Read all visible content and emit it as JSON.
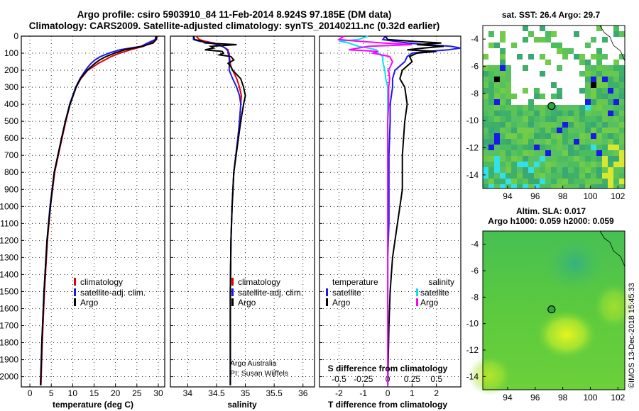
{
  "header": {
    "line1": "Argo profile: csiro 5903910_84 11-Feb-2014 8.924S 97.185E (DM data)",
    "line2": "Climatology: CARS2009. Satellite-adjusted climatology: synTS_20140211.nc (0.32d earlier)"
  },
  "colors": {
    "climatology": "#e00000",
    "satellite": "#1a1ae6",
    "argo": "#000000",
    "salinity_sat": "#00e5ee",
    "salinity_argo": "#ff00ff"
  },
  "depth_axis": {
    "ticks": [
      "0",
      "100",
      "200",
      "300",
      "400",
      "500",
      "600",
      "700",
      "800",
      "900",
      "1000",
      "1100",
      "1200",
      "1300",
      "1400",
      "1500",
      "1600",
      "1700",
      "1800",
      "1900",
      "2000"
    ],
    "range": [
      0,
      2060
    ]
  },
  "chart_data": [
    {
      "type": "line",
      "name": "temperature",
      "xlabel": "temperature (deg C)",
      "xticks": [
        "0",
        "5",
        "10",
        "15",
        "20",
        "25",
        "30"
      ],
      "xlim": [
        -2,
        31.5
      ],
      "legend": [
        "climatology",
        "satellite-adj. clim.",
        "Argo"
      ],
      "depth": [
        0,
        20,
        40,
        60,
        80,
        100,
        120,
        140,
        160,
        180,
        200,
        250,
        300,
        400,
        500,
        600,
        800,
        1000,
        1200,
        1500,
        1800,
        2050
      ],
      "series": [
        {
          "name": "climatology",
          "color": "#e00000",
          "values": [
            29.7,
            29.6,
            28.2,
            26.5,
            23.5,
            21.0,
            19.0,
            17.5,
            16.0,
            14.8,
            13.5,
            11.9,
            10.8,
            9.4,
            8.4,
            7.5,
            5.8,
            4.8,
            4.1,
            3.4,
            2.9,
            2.6
          ]
        },
        {
          "name": "satellite-adj. clim.",
          "color": "#1a1ae6",
          "values": [
            29.4,
            29.3,
            27.5,
            26.0,
            21.0,
            18.5,
            16.5,
            15.2,
            14.3,
            13.6,
            13.0,
            11.7,
            10.7,
            9.3,
            8.3,
            7.4,
            5.7,
            4.7,
            4.0,
            3.3,
            2.8,
            2.5
          ]
        },
        {
          "name": "Argo",
          "color": "#000000",
          "values": [
            29.6,
            29.5,
            28.8,
            26.2,
            22.2,
            19.8,
            17.8,
            16.3,
            15.2,
            14.3,
            13.4,
            11.8,
            10.8,
            9.4,
            8.3,
            7.4,
            5.7,
            4.8,
            4.0,
            3.3,
            2.8,
            2.5
          ]
        }
      ]
    },
    {
      "type": "line",
      "name": "salinity",
      "xlabel": "salinity",
      "xticks": [
        "34",
        "34.5",
        "35",
        "35.5",
        "36"
      ],
      "xlim": [
        33.7,
        36.2
      ],
      "legend": [
        "climatology",
        "satellite-adj. clim.",
        "Argo"
      ],
      "credit1": "Argo Australia",
      "credit2": "PI: Susan Wijffels",
      "depth": [
        0,
        20,
        30,
        40,
        50,
        60,
        70,
        80,
        90,
        100,
        110,
        120,
        140,
        160,
        180,
        200,
        250,
        300,
        350,
        400,
        500,
        600,
        800,
        1000,
        1200,
        1500,
        1800,
        2050
      ],
      "series": [
        {
          "name": "climatology",
          "color": "#e00000",
          "values": [
            34.15,
            34.2,
            34.3,
            34.45,
            34.55,
            34.6,
            34.65,
            34.7,
            34.7,
            34.72,
            34.72,
            34.72,
            34.73,
            34.74,
            34.75,
            34.78,
            34.85,
            34.9,
            34.93,
            34.92,
            34.9,
            34.87,
            34.8,
            34.77,
            34.75,
            34.74,
            34.74,
            34.74
          ]
        },
        {
          "name": "satellite-adj. clim.",
          "color": "#1a1ae6",
          "values": [
            34.1,
            34.1,
            34.2,
            34.4,
            34.5,
            34.6,
            34.65,
            34.68,
            34.7,
            34.7,
            34.71,
            34.72,
            34.72,
            34.73,
            34.72,
            34.72,
            34.78,
            34.85,
            34.9,
            34.92,
            34.9,
            34.87,
            34.8,
            34.77,
            34.75,
            34.74,
            34.74,
            34.74
          ]
        },
        {
          "name": "Argo",
          "color": "#000000",
          "values": [
            34.1,
            34.12,
            34.25,
            34.3,
            34.85,
            34.4,
            34.45,
            34.3,
            34.6,
            34.62,
            34.55,
            34.75,
            34.8,
            34.7,
            34.75,
            34.78,
            34.92,
            34.97,
            35.0,
            34.97,
            34.92,
            34.88,
            34.8,
            34.77,
            34.75,
            34.74,
            34.74,
            34.74
          ]
        }
      ]
    },
    {
      "type": "line",
      "name": "differences",
      "xlabel": "T difference from climatology",
      "xticks": [
        "-2",
        "-1",
        "0",
        "1",
        "2"
      ],
      "xlim": [
        -2.8,
        3.0
      ],
      "top_label": "S difference from climatology",
      "top_ticks": [
        "-0.5",
        "-0.25",
        "0",
        "0.25",
        "0.5"
      ],
      "legend_left_title": "temperature",
      "legend_left": [
        "satellite",
        "Argo"
      ],
      "legend_right_title": "salinity",
      "legend_right": [
        "satellite",
        "Argo"
      ],
      "depth": [
        0,
        20,
        30,
        40,
        50,
        60,
        70,
        80,
        90,
        100,
        120,
        150,
        200,
        250,
        300,
        400,
        500,
        700,
        900,
        1100,
        1300,
        1500,
        1700,
        2050
      ],
      "series": [
        {
          "name": "T satellite",
          "color": "#1a1ae6",
          "values": [
            -0.1,
            -0.2,
            0.3,
            0.8,
            1.6,
            2.6,
            3.0,
            2.5,
            1.6,
            1.0,
            0.8,
            0.7,
            0.3,
            0.2,
            0.2,
            0.1,
            0.1,
            0.05,
            0.05,
            0.05,
            0.0,
            0.0,
            0.0,
            0.0
          ]
        },
        {
          "name": "T Argo",
          "color": "#000000",
          "values": [
            -0.1,
            0.0,
            1.0,
            2.2,
            1.2,
            2.3,
            1.5,
            0.8,
            2.0,
            1.2,
            0.9,
            1.0,
            0.6,
            0.5,
            0.7,
            0.8,
            0.7,
            0.6,
            0.6,
            0.4,
            0.2,
            0.1,
            0.05,
            0.0
          ]
        },
        {
          "name": "S satellite",
          "color": "#00e5ee",
          "values": [
            -0.2,
            -0.3,
            -0.5,
            -0.4,
            -0.35,
            -0.3,
            -0.2,
            -0.12,
            -0.1,
            -0.1,
            -0.05,
            -0.05,
            -0.03,
            -0.02,
            0.0,
            0.0,
            0.0,
            0.0,
            0.0,
            0.0,
            0.0,
            0.0,
            0.0,
            0.0
          ]
        },
        {
          "name": "S Argo",
          "color": "#ff00ff",
          "values": [
            -0.45,
            -0.5,
            -0.3,
            -0.05,
            0.25,
            -0.2,
            -0.3,
            -0.4,
            -0.1,
            -0.15,
            0.02,
            0.05,
            0.01,
            0.02,
            0.01,
            0.01,
            0.0,
            0.0,
            0.0,
            0.0,
            0.0,
            0.0,
            0.0,
            0.0
          ]
        }
      ]
    }
  ],
  "maps": {
    "sst_title": "sat. SST: 26.4  Argo: 29.7",
    "sla_title1": "Altim. SLA: 0.017",
    "sla_title2": "Argo h1000: 0.059 h2000: 0.059",
    "yticks": [
      "-4",
      "-6",
      "-8",
      "-10",
      "-12",
      "-14"
    ],
    "xticks": [
      "94",
      "96",
      "98",
      "100",
      "102"
    ],
    "ylim": [
      -15,
      -3
    ],
    "xlim": [
      92.2,
      102.5
    ],
    "argo_lon": 97.185,
    "argo_lat": -8.924
  },
  "stamp": "©IMOS 13-Dec-2018 15:45:33"
}
